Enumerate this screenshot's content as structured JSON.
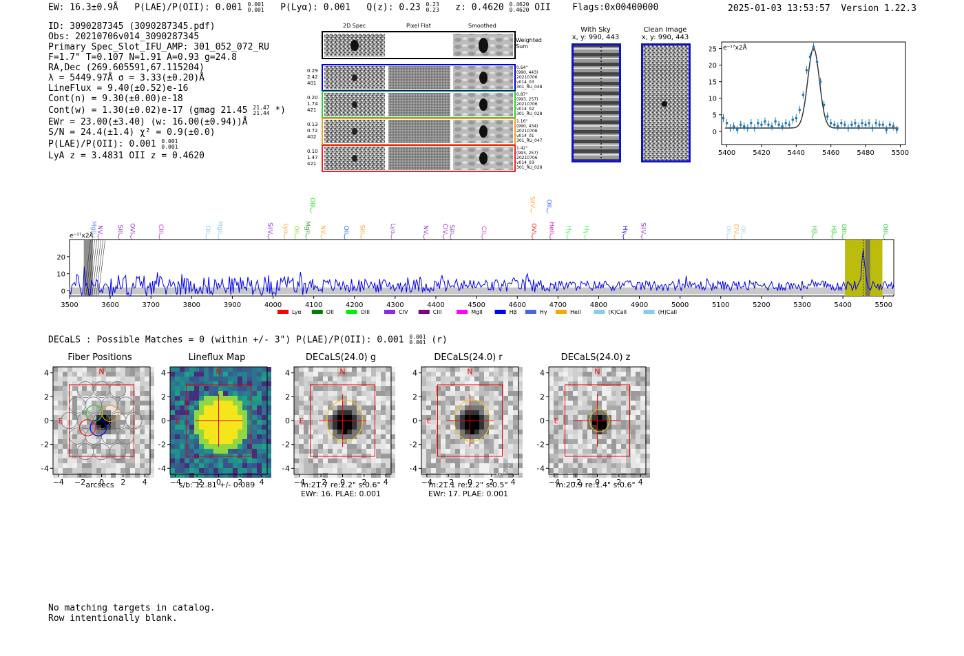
{
  "header": {
    "ew": "EW: 16.3±0.9Å",
    "plae": "P(LAE)/P(OII): 0.001",
    "plae_sup": "0.001",
    "plae_sub": "0.001",
    "plya": "P(Lyα): 0.001",
    "qz": "Q(z): 0.23",
    "qz_sup": "0.23",
    "qz_sub": "0.23",
    "z": "z: 0.4620",
    "z_sup": "0.4620",
    "z_sub": "0.4620",
    "z_line": "OII",
    "flags": "Flags:0x00400000",
    "timestamp": "2025-01-03 13:53:57",
    "version": "Version 1.22.3"
  },
  "meta": {
    "id": "ID: 3090287345 (3090287345.pdf)",
    "obs": "Obs: 20210706v014_3090287345",
    "primary": "Primary Spec_Slot_IFU_AMP: 301_052_072_RU",
    "fiber": "F=1.7\"  T=0.107  N=1.91  A=0.93  g=24.8",
    "radec": "RA,Dec (269.605591,67.115204)",
    "lambda": "λ = 5449.97Å   σ = 3.33(±0.20)Å",
    "lineflux": "LineFlux = 9.40(±0.52)e-16",
    "contn": "Cont(n) = 9.30(±0.00)e-18",
    "contw": "Cont(w) = 1.30(±0.02)e-17 (gmag 21.45",
    "contw_sup": "21.47",
    "contw_sub": "21.44",
    "contw_end": "*)",
    "ewr": "EWr = 23.00(±3.40) (w: 16.00(±0.94))Å",
    "sn": "S/N = 24.4(±1.4)  χ² = 0.9(±0.0)",
    "plae": "P(LAE)/P(OII): 0.001",
    "plae_sup": "0.001",
    "plae_sub": "0.001",
    "lyaz": "LyA z = 3.4831  OII z = 0.4620"
  },
  "spec2d": {
    "col_labels": [
      "2D Spec",
      "Pixel Flat",
      "Smoothed"
    ],
    "weighted": "Weighted Sum",
    "rows": [
      {
        "color": "#0000cc",
        "left": [
          "0.29",
          "2.42",
          "401"
        ],
        "right": [
          "0.64\"",
          "(990, 443)",
          "20210706",
          "v014_03",
          "301_RU_048"
        ]
      },
      {
        "color": "#33cc33",
        "left": [
          "0.20",
          "1.74",
          "421"
        ],
        "right": [
          "0.87\"",
          "(993, 257)",
          "20210706",
          "v014_02",
          "301_RU_028"
        ]
      },
      {
        "color": "#f0a020",
        "left": [
          "0.13",
          "0.72",
          "402"
        ],
        "right": [
          "1.16\"",
          "(990, 434)",
          "20210706",
          "v014_01",
          "301_RU_047"
        ]
      },
      {
        "color": "#ee2222",
        "left": [
          "0.10",
          "1.47",
          "421"
        ],
        "right": [
          "1.42\"",
          "(993, 257)",
          "20210706",
          "v014_03",
          "301_RU_028"
        ]
      }
    ]
  },
  "cutouts": {
    "withsky_title": "With Sky",
    "withsky_xy": "x, y: 990, 443",
    "clean_title": "Clean Image",
    "clean_xy": "x, y: 990, 443",
    "frame_color": "#1111cc"
  },
  "fit_panel": {
    "units": "e⁻¹⁷x2Å"
  },
  "full_units": "e⁻¹⁷x2Å",
  "legend": [
    {
      "name": "Lyα",
      "color": "#ff0000"
    },
    {
      "name": "OII",
      "color": "#008000"
    },
    {
      "name": "OIII",
      "color": "#00ee00"
    },
    {
      "name": "CIV",
      "color": "#8a2be2"
    },
    {
      "name": "CIII",
      "color": "#800080"
    },
    {
      "name": "MgII",
      "color": "#ff00ff"
    },
    {
      "name": "Hβ",
      "color": "#0000ff"
    },
    {
      "name": "Hγ",
      "color": "#4169e1"
    },
    {
      "name": "HeII",
      "color": "#ffa500"
    },
    {
      "name": "(K)CaII",
      "color": "#87ceeb"
    },
    {
      "name": "(H)CaII",
      "color": "#87ceeb"
    }
  ],
  "line_markers": [
    {
      "name": "MgII",
      "x": 3555,
      "color": "#7799ee",
      "row": 0
    },
    {
      "name": "NV",
      "x": 3570,
      "color": "#9933cc",
      "row": 0
    },
    {
      "name": "SiII",
      "x": 3620,
      "color": "#9933cc",
      "row": 0
    },
    {
      "name": "OVI",
      "x": 3650,
      "color": "#9933cc",
      "row": 0
    },
    {
      "name": "CIII",
      "x": 3720,
      "color": "#cc44cc",
      "row": 0
    },
    {
      "name": "OII",
      "x": 3835,
      "color": "#99ccee",
      "row": 0
    },
    {
      "name": "MgII",
      "x": 3865,
      "color": "#99ccee",
      "row": 0
    },
    {
      "name": "SiIV",
      "x": 3988,
      "color": "#9933cc",
      "row": 0
    },
    {
      "name": "Lyα",
      "x": 4027,
      "color": "#ffaa33",
      "row": 0
    },
    {
      "name": "OII",
      "x": 4053,
      "color": "#88dd44",
      "row": 0
    },
    {
      "name": "MgII",
      "x": 4080,
      "color": "#44aa44",
      "row": 0
    },
    {
      "name": "OIII",
      "x": 4092,
      "color": "#22dd22",
      "row": 1
    },
    {
      "name": "NV",
      "x": 4118,
      "color": "#ffaa33",
      "row": 0
    },
    {
      "name": "OII",
      "x": 4175,
      "color": "#3366ff",
      "row": 0
    },
    {
      "name": "SiII",
      "x": 4215,
      "color": "#ffaa33",
      "row": 0
    },
    {
      "name": "Lyα",
      "x": 4290,
      "color": "#9966dd",
      "row": 0
    },
    {
      "name": "NV",
      "x": 4370,
      "color": "#9933cc",
      "row": 0
    },
    {
      "name": "CIV",
      "x": 4418,
      "color": "#9933cc",
      "row": 0
    },
    {
      "name": "SiII",
      "x": 4435,
      "color": "#9933cc",
      "row": 0
    },
    {
      "name": "CII",
      "x": 4513,
      "color": "#cc44cc",
      "row": 0
    },
    {
      "name": "SiIV",
      "x": 4633,
      "color": "#ffaa33",
      "row": 1
    },
    {
      "name": "OVI",
      "x": 4636,
      "color": "#ee2222",
      "row": 0
    },
    {
      "name": "OII",
      "x": 4673,
      "color": "#3366ff",
      "row": 1
    },
    {
      "name": "HeII",
      "x": 4680,
      "color": "#cc22cc",
      "row": 0
    },
    {
      "name": "Hγ",
      "x": 4722,
      "color": "#55ee55",
      "row": 0
    },
    {
      "name": "Hγ",
      "x": 4765,
      "color": "#55ee55",
      "row": 0
    },
    {
      "name": "Hγ",
      "x": 4860,
      "color": "#2222cc",
      "row": 0
    },
    {
      "name": "SiIV",
      "x": 4905,
      "color": "#9933cc",
      "row": 0
    },
    {
      "name": "OII",
      "x": 5115,
      "color": "#99ddee",
      "row": 0
    },
    {
      "name": "CIV",
      "x": 5133,
      "color": "#ffaa33",
      "row": 0
    },
    {
      "name": "OII",
      "x": 5150,
      "color": "#99ddee",
      "row": 0
    },
    {
      "name": "Hβ",
      "x": 5325,
      "color": "#33cc33",
      "row": 0
    },
    {
      "name": "Hβ",
      "x": 5373,
      "color": "#33cc33",
      "row": 0
    },
    {
      "name": "OIII",
      "x": 5398,
      "color": "#33cc33",
      "row": 0
    },
    {
      "name": "OIII",
      "x": 5500,
      "color": "#33cc33",
      "row": 0
    }
  ],
  "chart_data": [
    {
      "type": "scatter",
      "title": "",
      "xlabel": "",
      "ylabel": "e⁻¹⁷x2Å",
      "xlim": [
        5397,
        5503
      ],
      "ylim": [
        -4,
        27
      ],
      "xticks": [
        5400,
        5420,
        5440,
        5460,
        5480,
        5500
      ],
      "yticks": [
        0,
        5,
        10,
        15,
        20,
        25
      ],
      "gaussian": {
        "center": 5450.0,
        "sigma": 3.33,
        "amplitude": 24.2,
        "continuum": 1.0
      },
      "x": [
        5398,
        5400,
        5402,
        5404,
        5406,
        5408,
        5410,
        5412,
        5414,
        5416,
        5418,
        5420,
        5422,
        5424,
        5426,
        5428,
        5430,
        5432,
        5434,
        5436,
        5438,
        5440,
        5442,
        5444,
        5446,
        5448,
        5450,
        5452,
        5454,
        5456,
        5458,
        5460,
        5462,
        5464,
        5466,
        5468,
        5470,
        5472,
        5474,
        5476,
        5478,
        5480,
        5482,
        5484,
        5486,
        5488,
        5490,
        5492,
        5494,
        5496,
        5498
      ],
      "y": [
        4.0,
        2.5,
        1.0,
        1.5,
        0.5,
        2.0,
        1.5,
        1.0,
        2.5,
        1.0,
        2.5,
        2.0,
        3.0,
        2.0,
        1.5,
        3.0,
        2.0,
        1.5,
        2.5,
        2.0,
        3.5,
        4.0,
        6.5,
        11.0,
        18.5,
        22.5,
        25.5,
        21.0,
        15.0,
        8.0,
        4.5,
        2.5,
        2.0,
        1.5,
        2.5,
        2.0,
        1.0,
        2.0,
        2.5,
        1.5,
        2.5,
        2.0,
        2.5,
        1.0,
        2.5,
        2.0,
        2.0,
        0.5,
        2.0,
        1.5,
        0.5
      ]
    },
    {
      "type": "line",
      "title": "",
      "xlabel": "",
      "ylabel": "e⁻¹⁷x2Å",
      "xlim": [
        3500,
        5525
      ],
      "ylim": [
        -3,
        30
      ],
      "xticks": [
        3500,
        3600,
        3700,
        3800,
        3900,
        4000,
        4100,
        4200,
        4300,
        4400,
        4500,
        4600,
        4700,
        4800,
        4900,
        5000,
        5100,
        5200,
        5300,
        5400,
        5500
      ],
      "yticks": [
        0,
        10,
        20
      ],
      "series": [
        {
          "name": "flux",
          "color": "#0000ee",
          "description": "noisy flux spectrum, higher noise blue end, emission peak near 5450"
        }
      ],
      "shaded_regions": [
        {
          "x0": 3535,
          "x1": 3557,
          "color": "#888888"
        },
        {
          "x0": 5405,
          "x1": 5497,
          "color": "#b8b800"
        },
        {
          "x0": 5455,
          "x1": 5467,
          "color": "#666666"
        }
      ],
      "peak": {
        "x": 5450,
        "y": 24
      }
    },
    {
      "type": "heatmap",
      "title": "Fiber Positions",
      "xlabel": "arcsecs",
      "xlim": [
        -4.5,
        4.5
      ],
      "ylim": [
        -4.5,
        4.5
      ],
      "ticks": [
        -4,
        -2,
        0,
        2,
        4
      ],
      "labels": {
        "north": "N",
        "east": "E"
      }
    },
    {
      "type": "heatmap",
      "title": "Lineflux Map",
      "caption": "s/b: 12.81 +/- 0.089",
      "xlim": [
        -4.5,
        4.5
      ],
      "ylim": [
        -4.5,
        4.5
      ],
      "ticks": [
        -4,
        -2,
        0,
        2,
        4
      ],
      "labels": {
        "north": "N",
        "east": "E"
      }
    },
    {
      "type": "heatmap",
      "title": "DECaLS(24.0) g",
      "caption1": "m:21.7  re:2.2\"  s:0.6\"",
      "caption2": "EWr: 16. PLAE: 0.001",
      "xlim": [
        -4.5,
        4.5
      ],
      "ylim": [
        -4.5,
        4.5
      ],
      "ticks": [
        -4,
        -2,
        0,
        2,
        4
      ],
      "labels": {
        "north": "N",
        "east": "E"
      }
    },
    {
      "type": "heatmap",
      "title": "DECaLS(24.0) r",
      "caption1": "m:21.1  re:2.2\"  s:0.5\"",
      "caption2": "EWr: 17. PLAE: 0.001",
      "xlim": [
        -4.5,
        4.5
      ],
      "ylim": [
        -4.5,
        4.5
      ],
      "ticks": [
        -4,
        -2,
        0,
        2,
        4
      ],
      "labels": {
        "north": "N",
        "east": "E"
      }
    },
    {
      "type": "heatmap",
      "title": "DECaLS(24.0) z",
      "caption1": "m:20.9  re:1.4\"  s:0.6\"",
      "caption2": "",
      "xlim": [
        -4.5,
        4.5
      ],
      "ylim": [
        -4.5,
        4.5
      ],
      "ticks": [
        -4,
        -2,
        0,
        2,
        4
      ],
      "labels": {
        "north": "N",
        "east": "E"
      }
    }
  ],
  "decals_line": "DECaLS : Possible Matches = 0 (within +/- 3\")  P(LAE)/P(OII): 0.001",
  "decals_sup": "0.001",
  "decals_sub": "0.001",
  "decals_end": "(r)",
  "footer": {
    "line1": "No matching targets in catalog.",
    "line2": "Row intentionally blank."
  }
}
